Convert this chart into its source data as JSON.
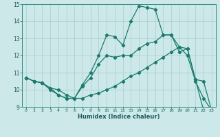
{
  "title": "",
  "xlabel": "Humidex (Indice chaleur)",
  "bg_color": "#cce8e8",
  "grid_color": "#aacccc",
  "line_color": "#1a7a6e",
  "xlim": [
    -0.5,
    23.5
  ],
  "ylim": [
    9,
    15
  ],
  "xticks": [
    0,
    1,
    2,
    3,
    4,
    5,
    6,
    7,
    8,
    9,
    10,
    11,
    12,
    13,
    14,
    15,
    16,
    17,
    18,
    19,
    20,
    21,
    22,
    23
  ],
  "yticks": [
    9,
    10,
    11,
    12,
    13,
    14,
    15
  ],
  "line_top_x": [
    0,
    1,
    2,
    3,
    4,
    5,
    6,
    7,
    8,
    9,
    10,
    11,
    12,
    13,
    14,
    15,
    16,
    17,
    18,
    19,
    20,
    21,
    22
  ],
  "line_top_y": [
    10.7,
    10.5,
    10.4,
    10.1,
    10.0,
    9.7,
    9.5,
    10.3,
    11.0,
    12.0,
    13.2,
    13.1,
    12.6,
    14.0,
    14.9,
    14.8,
    14.7,
    13.2,
    13.2,
    12.2,
    12.4,
    10.6,
    8.8
  ],
  "line_mid_x": [
    0,
    1,
    2,
    3,
    4,
    5,
    6,
    7,
    8,
    9,
    10,
    11,
    12,
    13,
    14,
    15,
    16,
    17,
    18,
    19,
    20,
    21,
    22,
    23
  ],
  "line_mid_y": [
    10.7,
    10.5,
    10.4,
    10.1,
    9.7,
    9.5,
    9.5,
    10.2,
    10.7,
    11.5,
    12.0,
    11.9,
    12.0,
    12.0,
    12.4,
    12.7,
    12.8,
    13.2,
    13.2,
    12.5,
    12.4,
    10.6,
    10.5,
    8.8
  ],
  "line_bot_x": [
    0,
    1,
    2,
    3,
    4,
    5,
    6,
    7,
    8,
    9,
    10,
    11,
    12,
    13,
    14,
    15,
    16,
    17,
    18,
    19,
    20,
    21,
    22,
    23
  ],
  "line_bot_y": [
    10.7,
    10.5,
    10.4,
    10.0,
    9.7,
    9.5,
    9.5,
    9.5,
    9.7,
    9.8,
    10.0,
    10.2,
    10.5,
    10.8,
    11.0,
    11.3,
    11.6,
    11.9,
    12.2,
    12.5,
    12.0,
    10.5,
    9.5,
    8.8
  ]
}
